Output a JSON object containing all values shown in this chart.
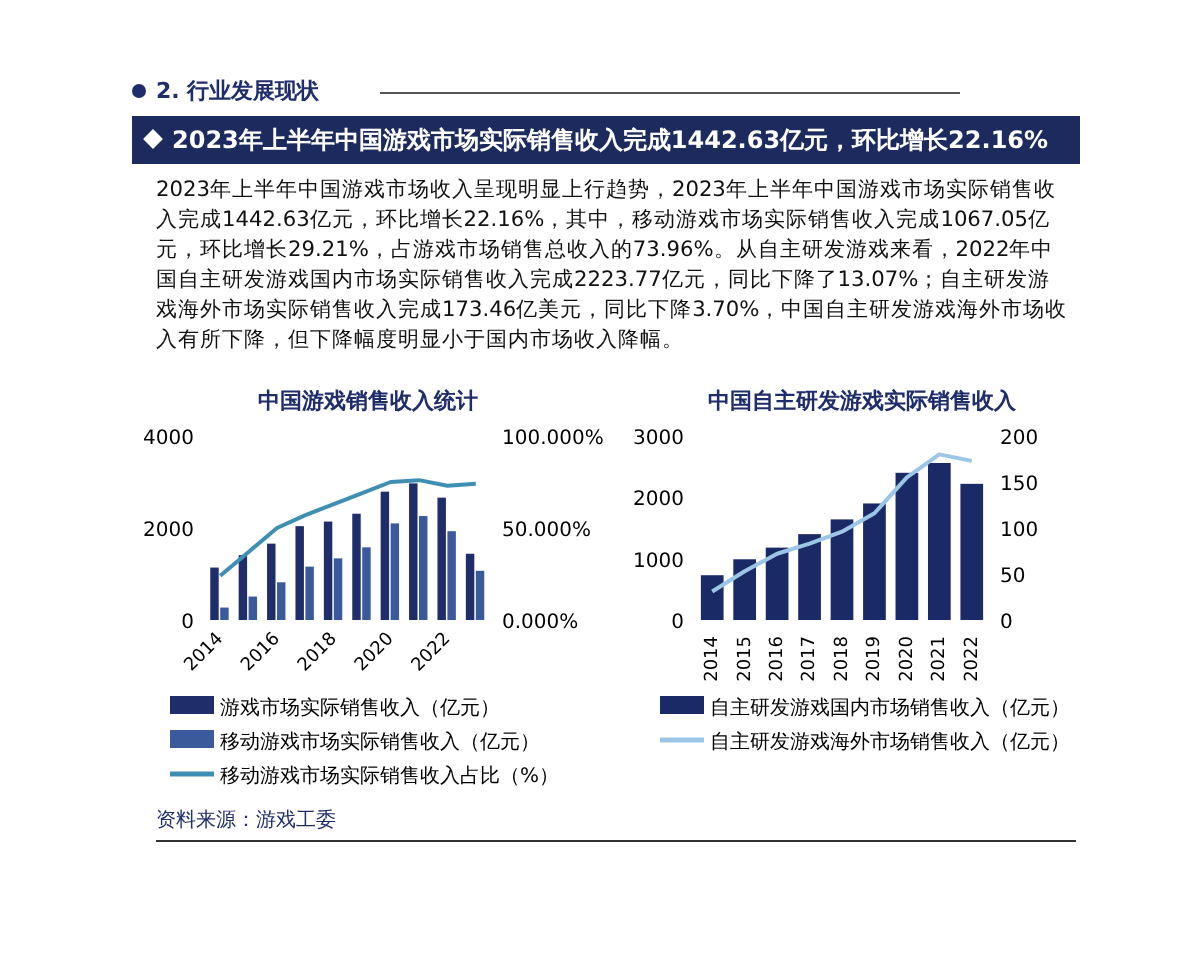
{
  "chart_data": [
    {
      "type": "other",
      "subtitle": "2. 行业发展现状",
      "title": "2023年上半年中国游戏市场实际销售收入完成1442.63亿元，环比增长22.16%",
      "annotations": [
        "2023年上半年中国游戏市场收入呈现明显上行趋势，2023年上半年中国游戏市场实际销售收入完成1442.63亿元，环比增长22.16%，其中，移动游戏市场实际销售收入完成1067.05亿元，环比增长29.21%，占游戏市场销售总收入的73.96%。从自主研发游戏来看，2022年中国自主研发游戏国内市场实际销售收入完成2223.77亿元，同比下降了13.07%；自主研发游戏海外市场实际销售收入完成173.46亿美元，同比下降3.70%，中国自主研发游戏海外市场收入有所下降，但下降幅度明显小于国内市场收入降幅。",
        "资料来源：游戏工委"
      ]
    },
    {
      "type": "bar",
      "title": "中国游戏销售收入统计",
      "categories": [
        "2014",
        null,
        "2016",
        null,
        "2018",
        null,
        "2020",
        null,
        "2022",
        null
      ],
      "series": [
        {
          "name": "游戏市场实际销售收入（亿元）",
          "color": "#1f2d6b",
          "values": [
            1140,
            1410,
            1660,
            2040,
            2140,
            2310,
            2790,
            2970,
            2660,
            1440
          ]
        },
        {
          "name": "移动游戏市场实际销售收入（亿元）",
          "color": "#3b5a9c",
          "values": [
            270,
            510,
            820,
            1160,
            1340,
            1580,
            2100,
            2260,
            1930,
            1070
          ]
        },
        {
          "name": "移动游戏市场实际销售收入占比（%）",
          "type": "line",
          "axis": "y2",
          "color": "#3f8fb3",
          "values": [
            24,
            37,
            50,
            57,
            63,
            69,
            75,
            76,
            73,
            74
          ]
        }
      ],
      "ylim": [
        0,
        4000
      ],
      "yticks": [
        0,
        2000,
        4000
      ],
      "y2lim": [
        0,
        100
      ],
      "y2ticks": [
        {
          "value": 0,
          "label": "0.000%"
        },
        {
          "value": 50,
          "label": "50.000%"
        },
        {
          "value": 100,
          "label": "100.000%"
        }
      ],
      "legend": "bottom",
      "marker": "none"
    },
    {
      "type": "bar",
      "title": "中国自主研发游戏实际销售收入",
      "categories": [
        "2014",
        "2015",
        "2016",
        "2017",
        "2018",
        "2019",
        "2020",
        "2021",
        "2022"
      ],
      "series": [
        {
          "name": "自主研发游戏国内市场销售收入（亿元）",
          "color": "#1a2a66",
          "values": [
            730,
            990,
            1180,
            1400,
            1640,
            1900,
            2400,
            2560,
            2220
          ]
        },
        {
          "name": "自主研发游戏海外市场销售收入（亿元）",
          "type": "line",
          "axis": "y2",
          "color": "#9cc6e6",
          "values": [
            31,
            53,
            72,
            83,
            96,
            116,
            155,
            180,
            173
          ]
        }
      ],
      "ylim": [
        0,
        3000
      ],
      "yticks": [
        0,
        1000,
        2000,
        3000
      ],
      "y2lim": [
        0,
        200
      ],
      "y2ticks": [
        0,
        50,
        100,
        150,
        200
      ],
      "legend": "bottom",
      "marker": "none"
    }
  ]
}
